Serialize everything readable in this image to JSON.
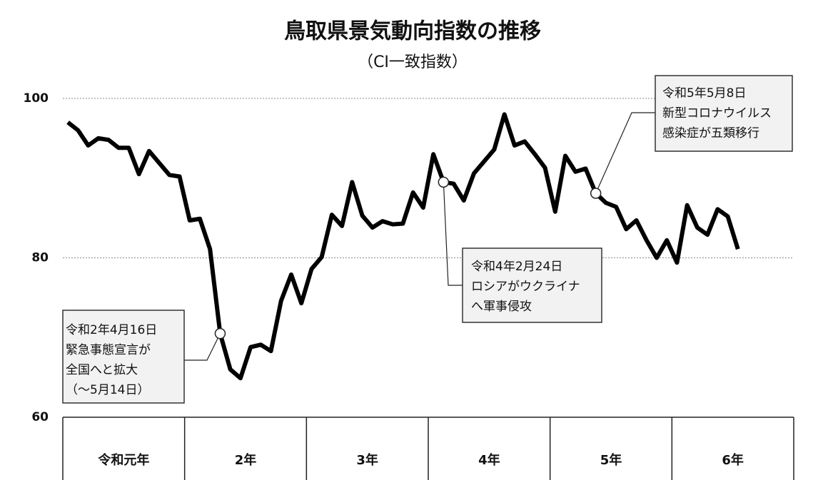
{
  "chart_data": {
    "type": "line",
    "title": "鳥取県景気動向指数の推移",
    "subtitle": "（CI一致指数）",
    "year_labels": [
      "令和元年",
      "2年",
      "3年",
      "4年",
      "5年",
      "6年"
    ],
    "categories": [
      null,
      null,
      null,
      null,
      null,
      null,
      null,
      null,
      null,
      null,
      null,
      null,
      null,
      null,
      null,
      null,
      null,
      null,
      null,
      null,
      null,
      null,
      null,
      null,
      null,
      null,
      null,
      null,
      null,
      null,
      null,
      null,
      null,
      null,
      null,
      null,
      null,
      null,
      null,
      null,
      null,
      null,
      null,
      null,
      null,
      null,
      null,
      null,
      null,
      null,
      null,
      null,
      null,
      null,
      null,
      null,
      null,
      null,
      null,
      null,
      null,
      null,
      null,
      null,
      null,
      null,
      null
    ],
    "values": [
      97.0,
      96.0,
      94.1,
      95.0,
      94.8,
      93.8,
      93.8,
      90.5,
      93.4,
      91.9,
      90.4,
      90.2,
      84.7,
      84.9,
      81.1,
      70.5,
      66.0,
      64.9,
      68.8,
      69.1,
      68.3,
      74.6,
      77.9,
      74.3,
      78.6,
      80.1,
      85.4,
      84.0,
      89.5,
      85.3,
      83.8,
      84.6,
      84.2,
      84.3,
      88.2,
      86.3,
      93.0,
      89.5,
      89.3,
      87.2,
      90.6,
      92.1,
      93.6,
      98.0,
      94.1,
      94.6,
      93.0,
      91.3,
      85.8,
      92.8,
      90.8,
      91.2,
      88.1,
      86.9,
      86.4,
      83.6,
      84.7,
      82.2,
      80.0,
      82.2,
      79.4,
      86.6,
      83.8,
      82.9,
      86.1,
      85.2,
      81.1
    ],
    "color": "#000000",
    "ylim": [
      60,
      100
    ],
    "yticks": [
      60,
      80,
      100
    ],
    "grid": true,
    "annotations": [
      [
        "令和2年4月16日",
        "緊急事態宣言が",
        "全国へと拡大",
        "（～5月14日）"
      ],
      [
        "令和4年2月24日",
        "ロシアがウクライナ",
        "へ軍事侵攻"
      ],
      [
        "令和5年5月8日",
        "新型コロナウイルス",
        "感染症が五類移行"
      ]
    ]
  }
}
